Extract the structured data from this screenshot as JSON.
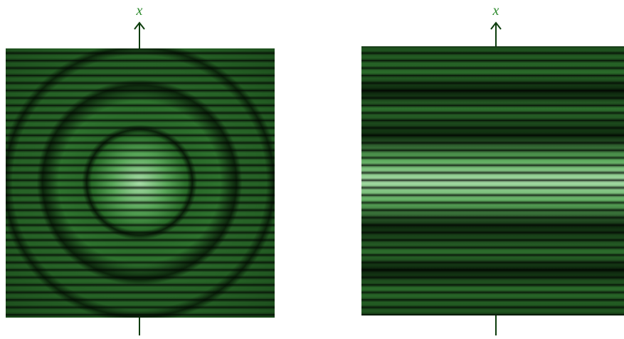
{
  "panels": [
    {
      "axis_label": "x"
    },
    {
      "axis_label": "x"
    }
  ]
}
